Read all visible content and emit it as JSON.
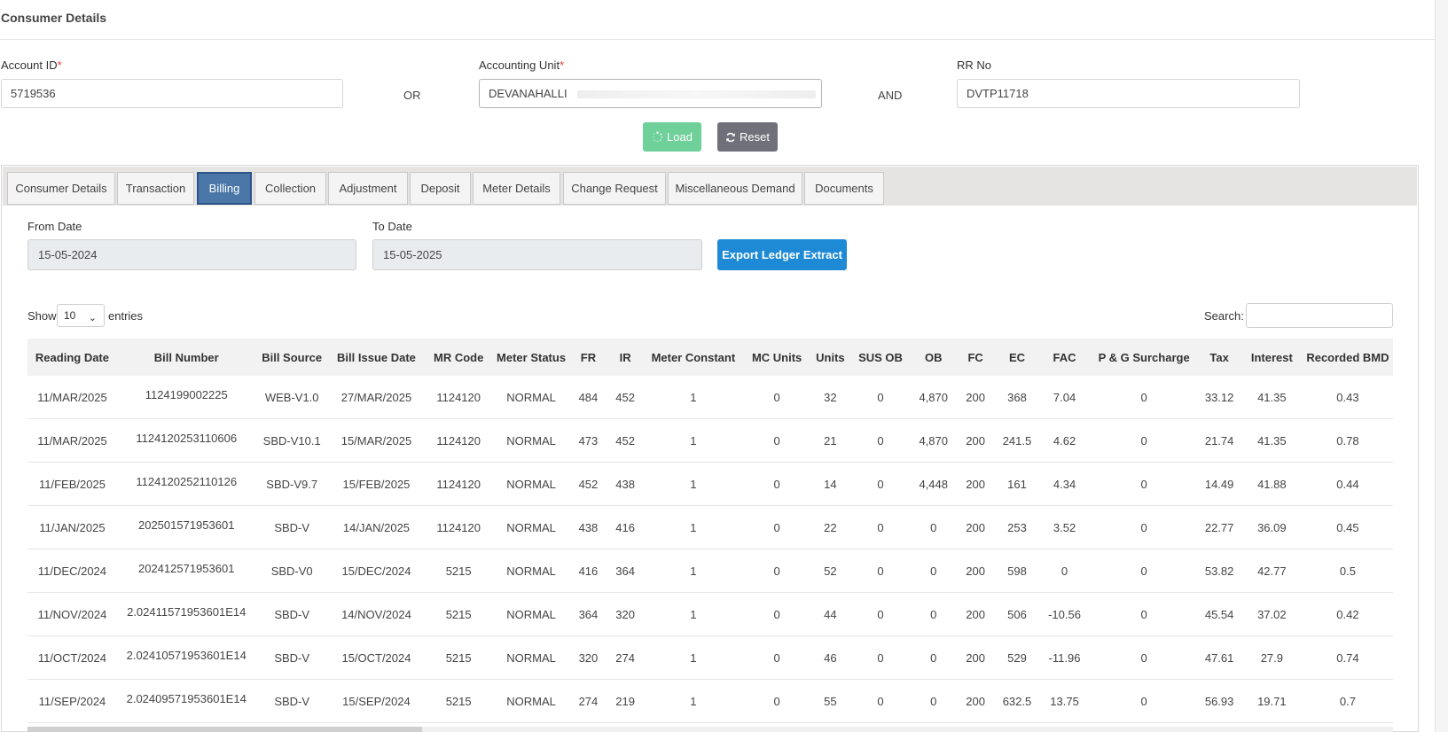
{
  "page": {
    "title": "Consumer Details"
  },
  "form": {
    "account_id": {
      "label": "Account ID",
      "value": "5719536"
    },
    "or_text": "OR",
    "accounting_unit": {
      "label": "Accounting Unit",
      "value": "DEVANAHALLI"
    },
    "and_text": "AND",
    "rr_no": {
      "label": "RR No",
      "value": "DVTP11718"
    },
    "required_mark": "*"
  },
  "actions": {
    "load_label": "Load",
    "load_icon": "spinner-icon",
    "reset_label": "Reset",
    "reset_icon": "refresh-icon",
    "load_color": "#6fd09a",
    "reset_color": "#70707a"
  },
  "tabs": [
    {
      "label": "Consumer Details",
      "active": false
    },
    {
      "label": "Transaction",
      "active": false
    },
    {
      "label": "Billing",
      "active": true
    },
    {
      "label": "Collection",
      "active": false
    },
    {
      "label": "Adjustment",
      "active": false
    },
    {
      "label": "Deposit",
      "active": false
    },
    {
      "label": "Meter Details",
      "active": false
    },
    {
      "label": "Change Request",
      "active": false
    },
    {
      "label": "Miscellaneous Demand",
      "active": false
    },
    {
      "label": "Documents",
      "active": false
    }
  ],
  "billing": {
    "from_date": {
      "label": "From Date",
      "value": "15-05-2024"
    },
    "to_date": {
      "label": "To Date",
      "value": "15-05-2025"
    },
    "export_label": "Export Ledger Extract",
    "export_color": "#1e8ad6",
    "show_label": "Show",
    "entries_value": "10",
    "entries_label": "entries",
    "search_label": "Search:"
  },
  "table": {
    "columns": [
      "Reading Date",
      "Bill Number",
      "Bill Source",
      "Bill Issue Date",
      "MR Code",
      "Meter Status",
      "FR",
      "IR",
      "Meter Constant",
      "MC Units",
      "Units",
      "SUS OB",
      "OB",
      "FC",
      "EC",
      "FAC",
      "P & G Surcharge",
      "Tax",
      "Interest",
      "Recorded BMD"
    ],
    "rows": [
      [
        "11/MAR/2025",
        "1124199002225",
        "WEB-V1.0",
        "27/MAR/2025",
        "1124120",
        "NORMAL",
        "484",
        "452",
        "1",
        "0",
        "32",
        "0",
        "4,870",
        "200",
        "368",
        "7.04",
        "0",
        "33.12",
        "41.35",
        "0.43"
      ],
      [
        "11/MAR/2025",
        "1124120253110606",
        "SBD-V10.1",
        "15/MAR/2025",
        "1124120",
        "NORMAL",
        "473",
        "452",
        "1",
        "0",
        "21",
        "0",
        "4,870",
        "200",
        "241.5",
        "4.62",
        "0",
        "21.74",
        "41.35",
        "0.78"
      ],
      [
        "11/FEB/2025",
        "1124120252110126",
        "SBD-V9.7",
        "15/FEB/2025",
        "1124120",
        "NORMAL",
        "452",
        "438",
        "1",
        "0",
        "14",
        "0",
        "4,448",
        "200",
        "161",
        "4.34",
        "0",
        "14.49",
        "41.88",
        "0.44"
      ],
      [
        "11/JAN/2025",
        "202501571953601",
        "SBD-V",
        "14/JAN/2025",
        "1124120",
        "NORMAL",
        "438",
        "416",
        "1",
        "0",
        "22",
        "0",
        "0",
        "200",
        "253",
        "3.52",
        "0",
        "22.77",
        "36.09",
        "0.45"
      ],
      [
        "11/DEC/2024",
        "202412571953601",
        "SBD-V0",
        "15/DEC/2024",
        "5215",
        "NORMAL",
        "416",
        "364",
        "1",
        "0",
        "52",
        "0",
        "0",
        "200",
        "598",
        "0",
        "0",
        "53.82",
        "42.77",
        "0.5"
      ],
      [
        "11/NOV/2024",
        "2.02411571953601E14",
        "SBD-V",
        "14/NOV/2024",
        "5215",
        "NORMAL",
        "364",
        "320",
        "1",
        "0",
        "44",
        "0",
        "0",
        "200",
        "506",
        "-10.56",
        "0",
        "45.54",
        "37.02",
        "0.42"
      ],
      [
        "11/OCT/2024",
        "2.02410571953601E14",
        "SBD-V",
        "15/OCT/2024",
        "5215",
        "NORMAL",
        "320",
        "274",
        "1",
        "0",
        "46",
        "0",
        "0",
        "200",
        "529",
        "-11.96",
        "0",
        "47.61",
        "27.9",
        "0.74"
      ],
      [
        "11/SEP/2024",
        "2.02409571953601E14",
        "SBD-V",
        "15/SEP/2024",
        "5215",
        "NORMAL",
        "274",
        "219",
        "1",
        "0",
        "55",
        "0",
        "0",
        "200",
        "632.5",
        "13.75",
        "0",
        "56.93",
        "19.71",
        "0.7"
      ]
    ]
  }
}
